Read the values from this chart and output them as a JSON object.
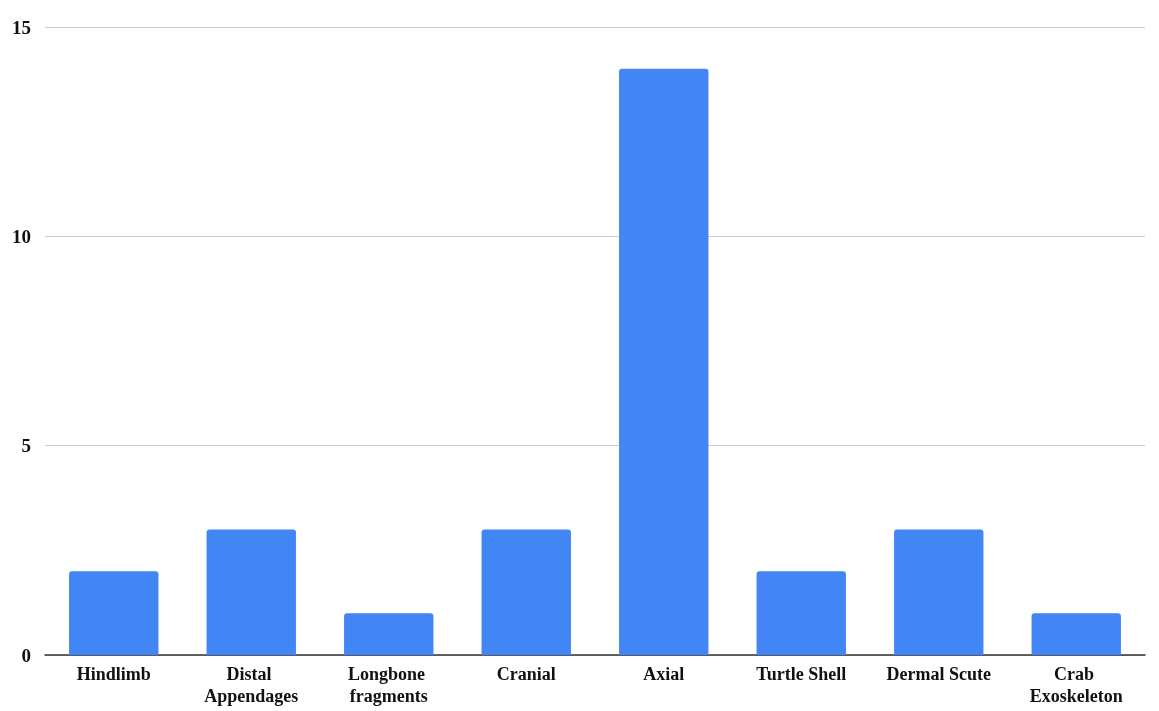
{
  "chart_data": {
    "type": "bar",
    "categories": [
      "Hindlimb",
      "Distal Appendages",
      "Longbone fragments",
      "Cranial",
      "Axial",
      "Turtle Shell",
      "Dermal Scute",
      "Crab Exoskeleton"
    ],
    "values": [
      2,
      3,
      1,
      3,
      14,
      2,
      3,
      1
    ],
    "color": "#4285f4",
    "ylim": [
      0,
      15
    ],
    "yticks": [
      0,
      5,
      10,
      15
    ],
    "grid": "y"
  }
}
